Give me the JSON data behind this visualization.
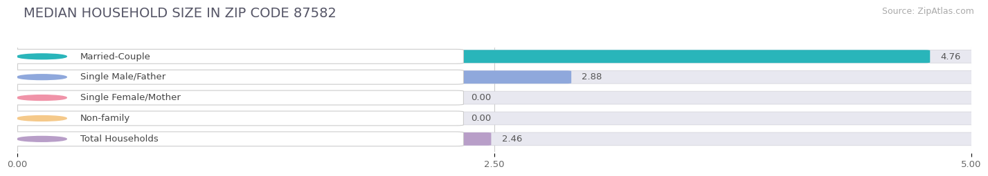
{
  "title": "MEDIAN HOUSEHOLD SIZE IN ZIP CODE 87582",
  "source": "Source: ZipAtlas.com",
  "categories": [
    "Married-Couple",
    "Single Male/Father",
    "Single Female/Mother",
    "Non-family",
    "Total Households"
  ],
  "values": [
    4.76,
    2.88,
    0.0,
    0.0,
    2.46
  ],
  "bar_colors": [
    "#29b5ba",
    "#8fa8dc",
    "#f093a8",
    "#f5c98a",
    "#b89ec8"
  ],
  "xlim": [
    0,
    5.0
  ],
  "xticks": [
    0.0,
    2.5,
    5.0
  ],
  "xtick_labels": [
    "0.00",
    "2.50",
    "5.00"
  ],
  "background_color": "#ffffff",
  "bar_bg_color": "#e8e8f0",
  "title_fontsize": 14,
  "source_fontsize": 9,
  "label_fontsize": 9.5,
  "value_fontsize": 9.5,
  "tick_fontsize": 9.5
}
